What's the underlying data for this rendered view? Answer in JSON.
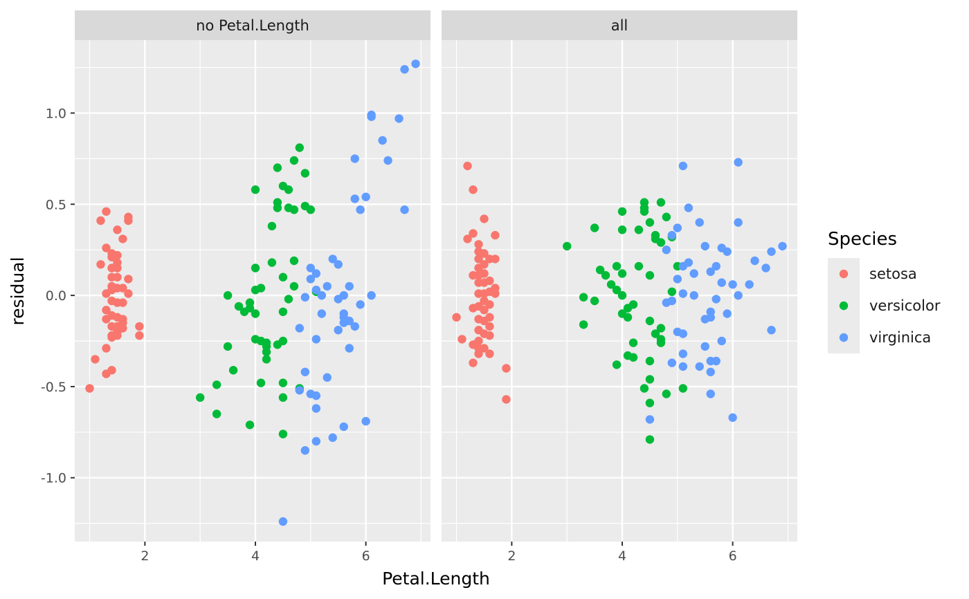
{
  "chart_data": {
    "type": "scatter",
    "facets": [
      "no Petal.Length",
      "all"
    ],
    "xlabel": "Petal.Length",
    "ylabel": "residual",
    "x_ticks": [
      2,
      4,
      6
    ],
    "y_ticks": [
      1.0,
      0.5,
      0.0,
      -0.5,
      -1.0
    ],
    "y_tick_labels": [
      "1.0",
      "0.5",
      "0.0",
      "-0.5",
      "-1.0"
    ],
    "xlim": [
      0.73,
      7.17
    ],
    "ylim": [
      -1.35,
      1.4
    ],
    "grid": true,
    "legend": {
      "title": "Species",
      "position": "right",
      "entries": [
        {
          "label": "setosa",
          "color": "#F8766D"
        },
        {
          "label": "versicolor",
          "color": "#00BA38"
        },
        {
          "label": "virginica",
          "color": "#619CFF"
        }
      ]
    },
    "colors": {
      "setosa": "#F8766D",
      "versicolor": "#00BA38",
      "virginica": "#619CFF",
      "panel_bg": "#EBEBEB",
      "strip_bg": "#D9D9D9",
      "grid": "#FFFFFF"
    },
    "series": [
      {
        "facet": "no Petal.Length",
        "species": "setosa",
        "points": [
          [
            1.0,
            -0.51
          ],
          [
            1.1,
            -0.35
          ],
          [
            1.2,
            0.41
          ],
          [
            1.2,
            0.17
          ],
          [
            1.3,
            0.46
          ],
          [
            1.3,
            0.26
          ],
          [
            1.3,
            0.01
          ],
          [
            1.3,
            -0.08
          ],
          [
            1.3,
            -0.13
          ],
          [
            1.3,
            -0.29
          ],
          [
            1.3,
            -0.43
          ],
          [
            1.4,
            0.23
          ],
          [
            1.4,
            0.21
          ],
          [
            1.4,
            0.15
          ],
          [
            1.4,
            0.1
          ],
          [
            1.4,
            0.05
          ],
          [
            1.4,
            0.03
          ],
          [
            1.4,
            -0.03
          ],
          [
            1.4,
            -0.11
          ],
          [
            1.4,
            -0.17
          ],
          [
            1.4,
            -0.22
          ],
          [
            1.4,
            -0.23
          ],
          [
            1.4,
            -0.41
          ],
          [
            1.5,
            0.36
          ],
          [
            1.5,
            0.22
          ],
          [
            1.5,
            0.18
          ],
          [
            1.5,
            0.15
          ],
          [
            1.5,
            0.1
          ],
          [
            1.5,
            0.04
          ],
          [
            1.5,
            -0.04
          ],
          [
            1.5,
            -0.12
          ],
          [
            1.5,
            -0.17
          ],
          [
            1.5,
            -0.2
          ],
          [
            1.5,
            -0.22
          ],
          [
            1.6,
            0.31
          ],
          [
            1.6,
            0.04
          ],
          [
            1.6,
            -0.04
          ],
          [
            1.6,
            -0.13
          ],
          [
            1.6,
            -0.15
          ],
          [
            1.6,
            -0.18
          ],
          [
            1.7,
            0.43
          ],
          [
            1.7,
            0.41
          ],
          [
            1.7,
            0.09
          ],
          [
            1.7,
            0.01
          ],
          [
            1.9,
            -0.17
          ],
          [
            1.9,
            -0.22
          ]
        ]
      },
      {
        "facet": "no Petal.Length",
        "species": "versicolor",
        "points": [
          [
            3.0,
            -0.56
          ],
          [
            3.3,
            -0.49
          ],
          [
            3.3,
            -0.65
          ],
          [
            3.5,
            0.0
          ],
          [
            3.5,
            -0.28
          ],
          [
            3.6,
            -0.41
          ],
          [
            3.7,
            -0.06
          ],
          [
            3.8,
            -0.09
          ],
          [
            3.9,
            -0.04
          ],
          [
            3.9,
            -0.07
          ],
          [
            3.9,
            -0.71
          ],
          [
            4.0,
            0.58
          ],
          [
            4.0,
            0.15
          ],
          [
            4.0,
            0.03
          ],
          [
            4.0,
            -0.1
          ],
          [
            4.0,
            -0.24
          ],
          [
            4.1,
            0.04
          ],
          [
            4.1,
            -0.25
          ],
          [
            4.1,
            -0.48
          ],
          [
            4.2,
            -0.26
          ],
          [
            4.2,
            -0.28
          ],
          [
            4.2,
            -0.31
          ],
          [
            4.2,
            -0.35
          ],
          [
            4.3,
            0.38
          ],
          [
            4.3,
            0.18
          ],
          [
            4.4,
            0.7
          ],
          [
            4.4,
            0.51
          ],
          [
            4.4,
            0.48
          ],
          [
            4.4,
            -0.27
          ],
          [
            4.5,
            0.6
          ],
          [
            4.5,
            0.1
          ],
          [
            4.5,
            -0.09
          ],
          [
            4.5,
            -0.25
          ],
          [
            4.5,
            -0.48
          ],
          [
            4.5,
            -0.56
          ],
          [
            4.5,
            -0.76
          ],
          [
            4.6,
            0.58
          ],
          [
            4.6,
            0.48
          ],
          [
            4.6,
            -0.02
          ],
          [
            4.7,
            0.74
          ],
          [
            4.7,
            0.47
          ],
          [
            4.7,
            0.19
          ],
          [
            4.7,
            0.05
          ],
          [
            4.8,
            0.81
          ],
          [
            4.8,
            -0.51
          ],
          [
            4.9,
            0.67
          ],
          [
            4.9,
            0.49
          ],
          [
            5.0,
            0.47
          ],
          [
            5.1,
            0.02
          ]
        ]
      },
      {
        "facet": "no Petal.Length",
        "species": "virginica",
        "points": [
          [
            4.5,
            -1.24
          ],
          [
            4.8,
            -0.18
          ],
          [
            4.8,
            -0.52
          ],
          [
            4.9,
            -0.01
          ],
          [
            4.9,
            -0.42
          ],
          [
            4.9,
            -0.85
          ],
          [
            5.0,
            0.15
          ],
          [
            5.0,
            0.09
          ],
          [
            5.0,
            -0.54
          ],
          [
            5.1,
            0.12
          ],
          [
            5.1,
            0.03
          ],
          [
            5.1,
            -0.24
          ],
          [
            5.1,
            -0.55
          ],
          [
            5.1,
            -0.62
          ],
          [
            5.1,
            -0.8
          ],
          [
            5.2,
            -0.0
          ],
          [
            5.2,
            -0.1
          ],
          [
            5.3,
            0.05
          ],
          [
            5.3,
            -0.45
          ],
          [
            5.4,
            0.2
          ],
          [
            5.4,
            -0.78
          ],
          [
            5.5,
            0.17
          ],
          [
            5.5,
            -0.02
          ],
          [
            5.5,
            -0.19
          ],
          [
            5.6,
            0.0
          ],
          [
            5.6,
            -0.1
          ],
          [
            5.6,
            -0.12
          ],
          [
            5.6,
            -0.15
          ],
          [
            5.6,
            -0.72
          ],
          [
            5.7,
            0.05
          ],
          [
            5.7,
            -0.14
          ],
          [
            5.7,
            -0.29
          ],
          [
            5.8,
            0.75
          ],
          [
            5.8,
            0.53
          ],
          [
            5.8,
            -0.17
          ],
          [
            5.9,
            0.47
          ],
          [
            5.9,
            -0.05
          ],
          [
            6.0,
            0.54
          ],
          [
            6.0,
            -0.69
          ],
          [
            6.1,
            0.99
          ],
          [
            6.1,
            0.98
          ],
          [
            6.1,
            0.0
          ],
          [
            6.3,
            0.85
          ],
          [
            6.4,
            0.74
          ],
          [
            6.6,
            0.97
          ],
          [
            6.7,
            1.24
          ],
          [
            6.7,
            0.47
          ],
          [
            6.9,
            1.27
          ]
        ]
      },
      {
        "facet": "all",
        "species": "setosa",
        "points": [
          [
            1.0,
            -0.12
          ],
          [
            1.1,
            -0.24
          ],
          [
            1.2,
            0.71
          ],
          [
            1.2,
            0.31
          ],
          [
            1.3,
            0.58
          ],
          [
            1.3,
            0.34
          ],
          [
            1.3,
            0.11
          ],
          [
            1.3,
            -0.07
          ],
          [
            1.3,
            -0.27
          ],
          [
            1.3,
            -0.37
          ],
          [
            1.4,
            0.28
          ],
          [
            1.4,
            0.24
          ],
          [
            1.4,
            0.2
          ],
          [
            1.4,
            0.15
          ],
          [
            1.4,
            0.11
          ],
          [
            1.4,
            0.07
          ],
          [
            1.4,
            0.01
          ],
          [
            1.4,
            -0.06
          ],
          [
            1.4,
            -0.13
          ],
          [
            1.4,
            -0.19
          ],
          [
            1.4,
            -0.25
          ],
          [
            1.4,
            -0.29
          ],
          [
            1.4,
            -0.32
          ],
          [
            1.5,
            0.42
          ],
          [
            1.5,
            0.23
          ],
          [
            1.5,
            0.17
          ],
          [
            1.5,
            0.12
          ],
          [
            1.5,
            0.07
          ],
          [
            1.5,
            0.01
          ],
          [
            1.5,
            -0.03
          ],
          [
            1.5,
            -0.08
          ],
          [
            1.5,
            -0.14
          ],
          [
            1.5,
            -0.21
          ],
          [
            1.5,
            -0.29
          ],
          [
            1.6,
            0.2
          ],
          [
            1.6,
            0.08
          ],
          [
            1.6,
            0.02
          ],
          [
            1.6,
            -0.05
          ],
          [
            1.6,
            -0.12
          ],
          [
            1.6,
            -0.17
          ],
          [
            1.6,
            -0.22
          ],
          [
            1.6,
            -0.32
          ],
          [
            1.7,
            0.33
          ],
          [
            1.7,
            0.2
          ],
          [
            1.7,
            0.04
          ],
          [
            1.7,
            0.01
          ],
          [
            1.9,
            -0.4
          ],
          [
            1.9,
            -0.57
          ]
        ]
      },
      {
        "facet": "all",
        "species": "versicolor",
        "points": [
          [
            3.0,
            0.27
          ],
          [
            3.3,
            -0.01
          ],
          [
            3.3,
            -0.16
          ],
          [
            3.5,
            0.37
          ],
          [
            3.5,
            -0.03
          ],
          [
            3.6,
            0.14
          ],
          [
            3.7,
            0.11
          ],
          [
            3.8,
            0.06
          ],
          [
            3.9,
            0.16
          ],
          [
            3.9,
            0.03
          ],
          [
            3.9,
            -0.38
          ],
          [
            4.0,
            0.46
          ],
          [
            4.0,
            0.36
          ],
          [
            4.0,
            0.12
          ],
          [
            4.0,
            0.0
          ],
          [
            4.0,
            -0.1
          ],
          [
            4.1,
            -0.07
          ],
          [
            4.1,
            -0.12
          ],
          [
            4.1,
            -0.33
          ],
          [
            4.2,
            -0.05
          ],
          [
            4.2,
            -0.26
          ],
          [
            4.2,
            -0.34
          ],
          [
            4.3,
            0.36
          ],
          [
            4.3,
            0.16
          ],
          [
            4.4,
            0.51
          ],
          [
            4.4,
            0.48
          ],
          [
            4.4,
            0.46
          ],
          [
            4.4,
            -0.51
          ],
          [
            4.5,
            0.4
          ],
          [
            4.5,
            0.11
          ],
          [
            4.5,
            -0.14
          ],
          [
            4.5,
            -0.36
          ],
          [
            4.5,
            -0.46
          ],
          [
            4.5,
            -0.59
          ],
          [
            4.5,
            -0.79
          ],
          [
            4.6,
            0.33
          ],
          [
            4.6,
            0.31
          ],
          [
            4.6,
            -0.21
          ],
          [
            4.7,
            0.51
          ],
          [
            4.7,
            0.29
          ],
          [
            4.7,
            -0.18
          ],
          [
            4.7,
            -0.24
          ],
          [
            4.7,
            -0.26
          ],
          [
            4.8,
            0.43
          ],
          [
            4.8,
            -0.54
          ],
          [
            4.9,
            0.32
          ],
          [
            4.9,
            0.02
          ],
          [
            5.0,
            0.16
          ],
          [
            5.1,
            -0.51
          ]
        ]
      },
      {
        "facet": "all",
        "species": "virginica",
        "points": [
          [
            4.5,
            -0.68
          ],
          [
            4.8,
            0.25
          ],
          [
            4.8,
            -0.04
          ],
          [
            4.9,
            0.33
          ],
          [
            4.9,
            -0.03
          ],
          [
            4.9,
            -0.37
          ],
          [
            5.0,
            0.37
          ],
          [
            5.0,
            0.09
          ],
          [
            5.0,
            -0.2
          ],
          [
            5.1,
            0.71
          ],
          [
            5.1,
            0.16
          ],
          [
            5.1,
            0.01
          ],
          [
            5.1,
            -0.21
          ],
          [
            5.1,
            -0.32
          ],
          [
            5.1,
            -0.39
          ],
          [
            5.2,
            0.48
          ],
          [
            5.2,
            0.18
          ],
          [
            5.3,
            0.12
          ],
          [
            5.3,
            -0.0
          ],
          [
            5.4,
            0.4
          ],
          [
            5.4,
            -0.39
          ],
          [
            5.5,
            0.27
          ],
          [
            5.5,
            -0.13
          ],
          [
            5.5,
            -0.28
          ],
          [
            5.6,
            0.13
          ],
          [
            5.6,
            -0.09
          ],
          [
            5.6,
            -0.12
          ],
          [
            5.6,
            -0.36
          ],
          [
            5.6,
            -0.42
          ],
          [
            5.6,
            -0.54
          ],
          [
            5.7,
            0.16
          ],
          [
            5.7,
            -0.02
          ],
          [
            5.7,
            -0.36
          ],
          [
            5.8,
            0.26
          ],
          [
            5.8,
            0.07
          ],
          [
            5.8,
            -0.25
          ],
          [
            5.9,
            0.24
          ],
          [
            5.9,
            -0.1
          ],
          [
            6.0,
            0.06
          ],
          [
            6.0,
            -0.67
          ],
          [
            6.1,
            0.73
          ],
          [
            6.1,
            0.4
          ],
          [
            6.1,
            0.0
          ],
          [
            6.3,
            0.06
          ],
          [
            6.4,
            0.19
          ],
          [
            6.6,
            0.15
          ],
          [
            6.7,
            0.24
          ],
          [
            6.7,
            -0.19
          ],
          [
            6.9,
            0.27
          ]
        ]
      }
    ]
  }
}
